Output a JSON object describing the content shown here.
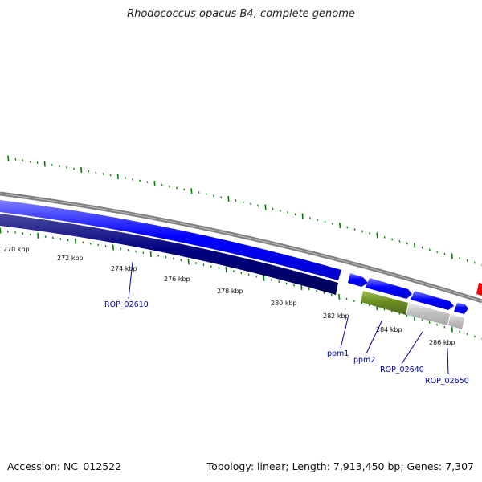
{
  "title": "Rhodococcus opacus B4, complete genome",
  "footer": {
    "accession": "Accession: NC_012522",
    "summary": "Topology: linear; Length: 7,913,450 bp; Genes: 7,307"
  },
  "axis_ticks": [
    "270 kbp",
    "272 kbp",
    "274 kbp",
    "276 kbp",
    "278 kbp",
    "280 kbp",
    "282 kbp",
    "284 kbp",
    "286 kbp"
  ],
  "gene_labels": [
    "ROP_02610",
    "ppm1",
    "ppm2",
    "ROP_02640",
    "ROP_02650"
  ],
  "colors": {
    "backbone": "#808080",
    "gene_forward": "#0000ff",
    "gene_reverse": "#000080",
    "gene_special": "#6b8e23",
    "gene_grey": "#c0c0c0",
    "gene_red": "#ff0000",
    "tick": "#008000",
    "label": "#0000aa"
  }
}
